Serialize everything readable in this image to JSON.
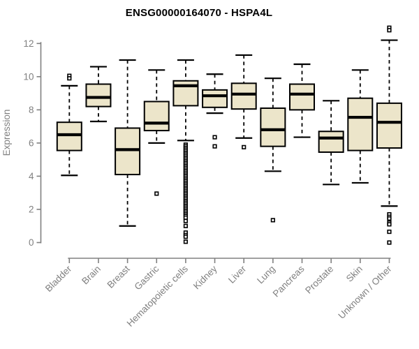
{
  "chart_data": {
    "type": "boxplot",
    "title": "ENSG00000164070 - HSPA4L",
    "xlabel": "",
    "ylabel": "Expression",
    "ylim": [
      0,
      12
    ],
    "yticks": [
      0,
      2,
      4,
      6,
      8,
      10,
      12
    ],
    "grid": false,
    "legend": "none",
    "colors": {
      "box_fill": "#ECE5CA",
      "box_stroke": "#000000",
      "median": "#000000",
      "whisker": "#000000",
      "axis": "#808080",
      "tick_label": "#808080",
      "title": "#000000",
      "background": "#ffffff"
    },
    "categories": [
      "Bladder",
      "Brain",
      "Breast",
      "Gastric",
      "Hematopoietic cells",
      "Kidney",
      "Liver",
      "Lung",
      "Pancreas",
      "Prostate",
      "Skin",
      "Unknown / Other"
    ],
    "series": [
      {
        "label": "Bladder",
        "whisker_low": 4.05,
        "q1": 5.55,
        "median": 6.5,
        "q3": 7.25,
        "whisker_high": 9.45,
        "outliers": [
          10.05,
          9.9
        ]
      },
      {
        "label": "Brain",
        "whisker_low": 7.3,
        "q1": 8.2,
        "median": 8.75,
        "q3": 9.55,
        "whisker_high": 10.6,
        "outliers": []
      },
      {
        "label": "Breast",
        "whisker_low": 1.0,
        "q1": 4.1,
        "median": 5.6,
        "q3": 6.9,
        "whisker_high": 11.0,
        "outliers": []
      },
      {
        "label": "Gastric",
        "whisker_low": 6.0,
        "q1": 6.75,
        "median": 7.2,
        "q3": 8.5,
        "whisker_high": 10.4,
        "outliers": [
          2.95
        ]
      },
      {
        "label": "Hematopoietic cells",
        "whisker_low": 6.15,
        "q1": 8.25,
        "median": 9.45,
        "q3": 9.75,
        "whisker_high": 11.0,
        "outliers": [
          5.9,
          5.8,
          5.7,
          5.6,
          5.5,
          5.4,
          5.3,
          5.2,
          5.1,
          5.0,
          4.9,
          4.8,
          4.7,
          4.6,
          4.5,
          4.4,
          4.3,
          4.2,
          4.1,
          4.0,
          3.9,
          3.8,
          3.7,
          3.6,
          3.5,
          3.4,
          3.3,
          3.2,
          3.1,
          3.0,
          2.9,
          2.8,
          2.7,
          2.6,
          2.5,
          2.4,
          2.3,
          2.2,
          2.1,
          2.0,
          1.9,
          1.8,
          1.7,
          1.6,
          1.5,
          1.3,
          1.0,
          0.6,
          0.45,
          0.35,
          0.05
        ]
      },
      {
        "label": "Kidney",
        "whisker_low": 7.8,
        "q1": 8.15,
        "median": 8.85,
        "q3": 9.2,
        "whisker_high": 10.15,
        "outliers": [
          6.35,
          5.8
        ]
      },
      {
        "label": "Liver",
        "whisker_low": 6.3,
        "q1": 8.05,
        "median": 8.95,
        "q3": 9.6,
        "whisker_high": 11.3,
        "outliers": [
          5.75
        ]
      },
      {
        "label": "Lung",
        "whisker_low": 4.3,
        "q1": 5.8,
        "median": 6.8,
        "q3": 8.1,
        "whisker_high": 9.9,
        "outliers": [
          1.35
        ]
      },
      {
        "label": "Pancreas",
        "whisker_low": 6.35,
        "q1": 8.0,
        "median": 8.95,
        "q3": 9.55,
        "whisker_high": 10.75,
        "outliers": []
      },
      {
        "label": "Prostate",
        "whisker_low": 3.5,
        "q1": 5.45,
        "median": 6.3,
        "q3": 6.7,
        "whisker_high": 8.55,
        "outliers": []
      },
      {
        "label": "Skin",
        "whisker_low": 3.6,
        "q1": 5.55,
        "median": 7.55,
        "q3": 8.7,
        "whisker_high": 10.4,
        "outliers": []
      },
      {
        "label": "Unknown / Other",
        "whisker_low": 2.2,
        "q1": 5.7,
        "median": 7.25,
        "q3": 8.4,
        "whisker_high": 12.2,
        "outliers": [
          12.95,
          12.8,
          1.7,
          1.55,
          1.45,
          1.2,
          1.1,
          0.65,
          0.0
        ]
      }
    ]
  }
}
